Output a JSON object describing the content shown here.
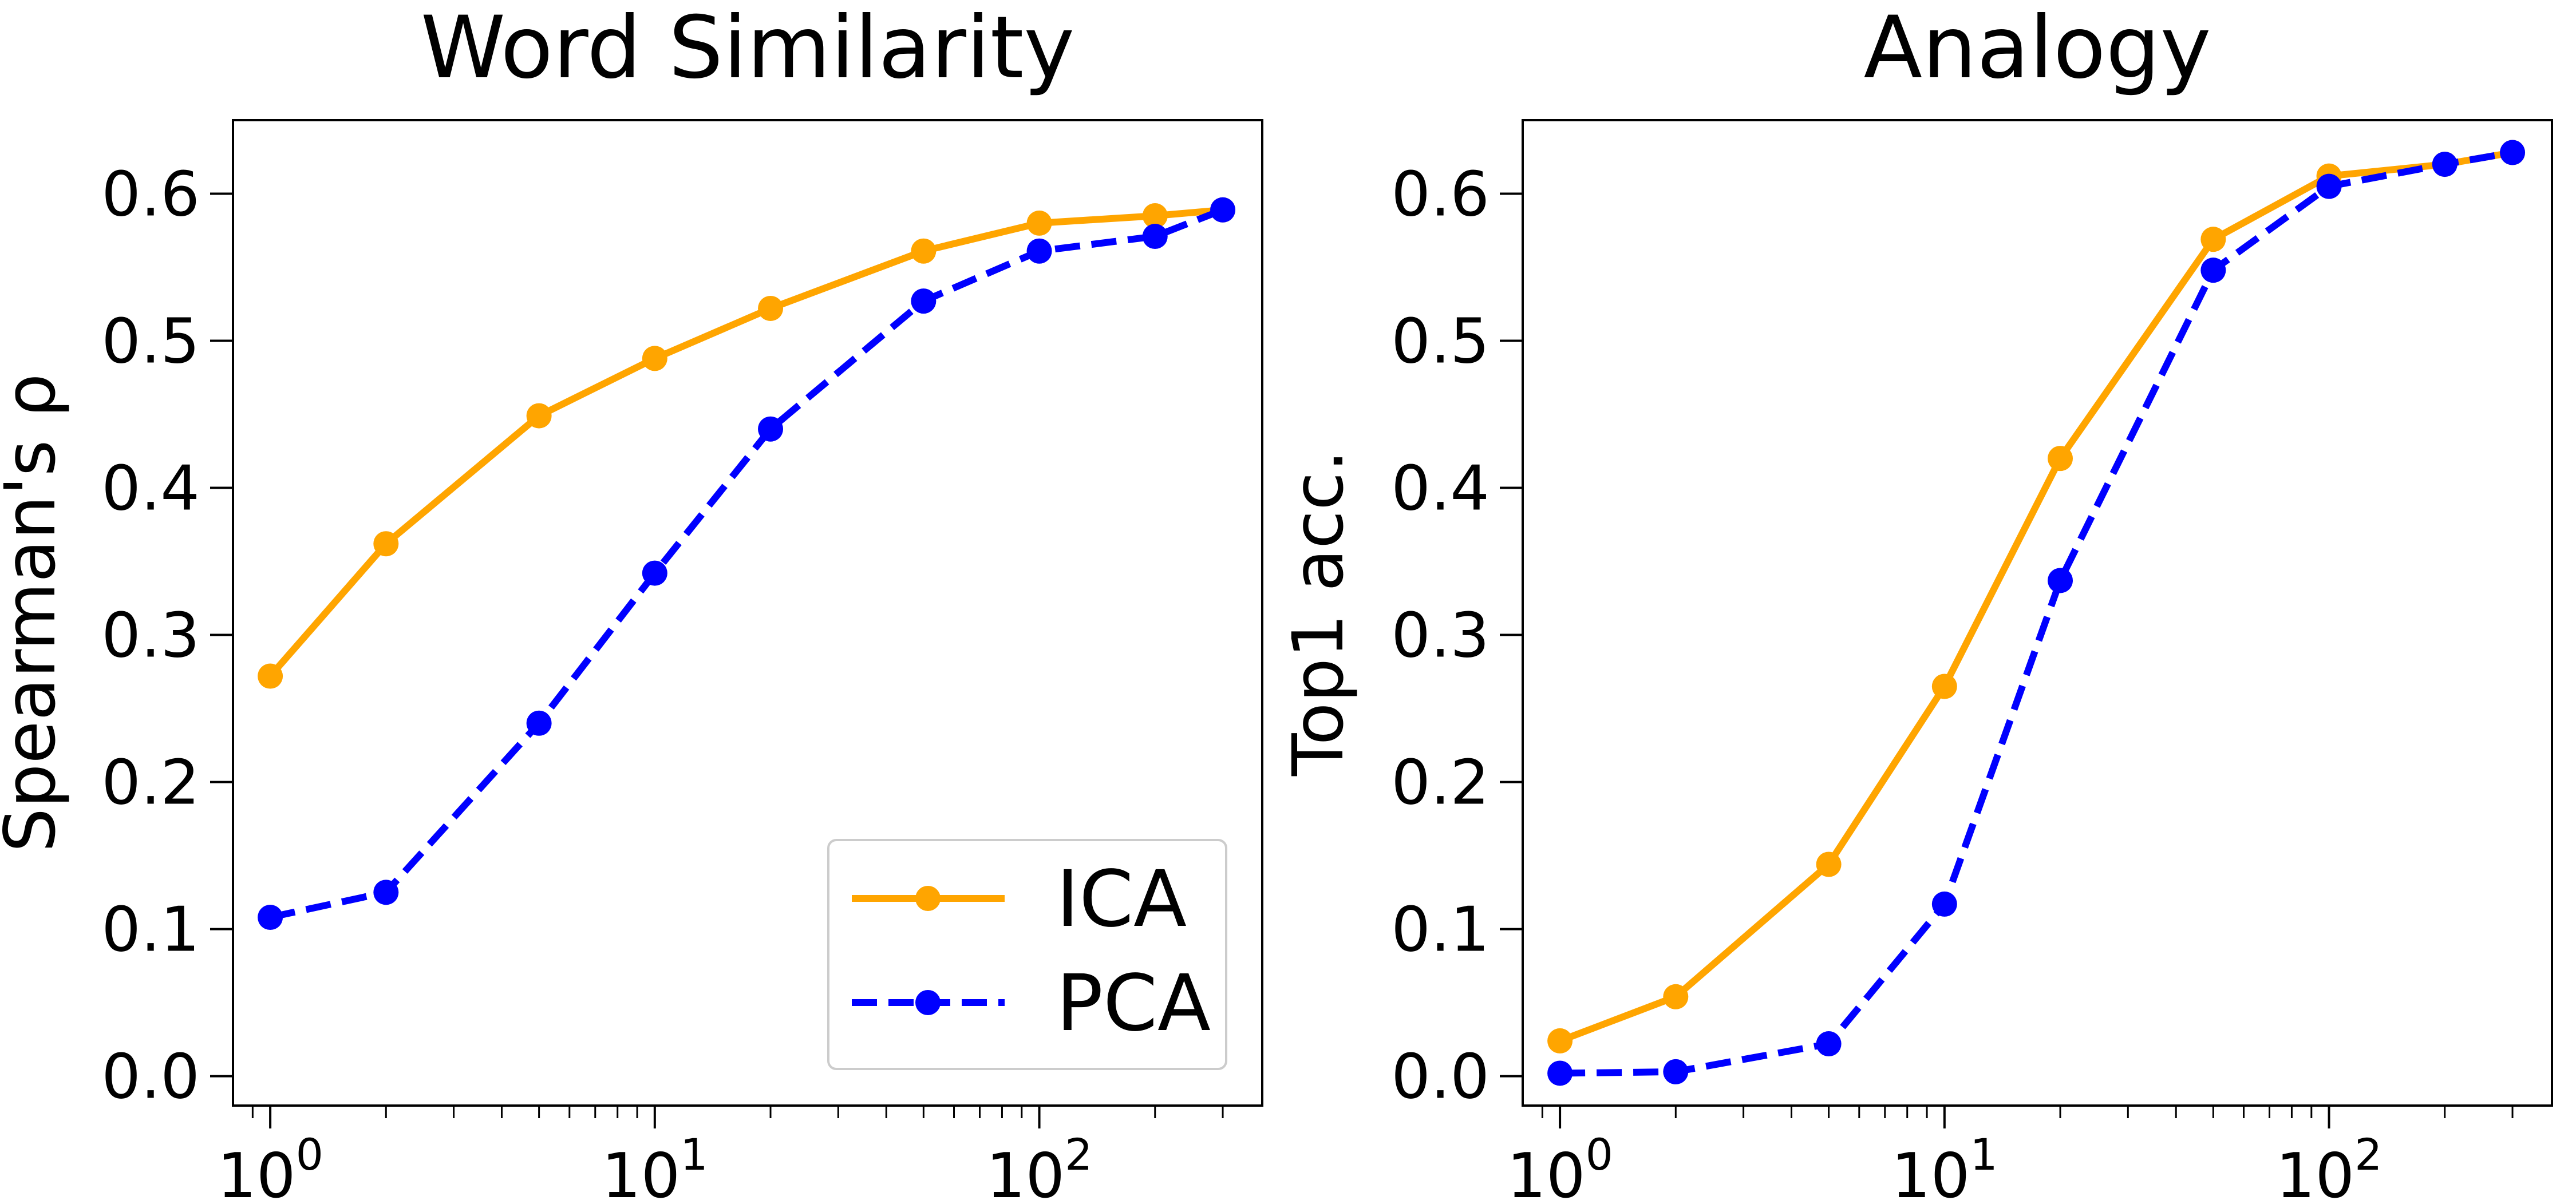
{
  "chart_data": [
    {
      "type": "line",
      "title": "Word Similarity",
      "xlabel": "",
      "ylabel": "Spearman's ρ",
      "xscale": "log",
      "xlim": [
        0.8,
        380
      ],
      "ylim": [
        -0.02,
        0.65
      ],
      "xticks": [
        {
          "value": 1,
          "base": "10",
          "exp": "0"
        },
        {
          "value": 10,
          "base": "10",
          "exp": "1"
        },
        {
          "value": 100,
          "base": "10",
          "exp": "2"
        }
      ],
      "yticks": [
        "0.0",
        "0.1",
        "0.2",
        "0.3",
        "0.4",
        "0.5",
        "0.6"
      ],
      "legend": {
        "position": "lower-right",
        "entries": [
          "ICA",
          "PCA"
        ]
      },
      "grid": false,
      "x": [
        1,
        2,
        5,
        10,
        20,
        50,
        100,
        200,
        300
      ],
      "series": [
        {
          "name": "ICA",
          "color": "#FFA500",
          "style": "solid",
          "values": [
            0.272,
            0.362,
            0.449,
            0.488,
            0.522,
            0.561,
            0.58,
            0.585,
            0.589
          ]
        },
        {
          "name": "PCA",
          "color": "#0000FF",
          "style": "dashed",
          "values": [
            0.108,
            0.125,
            0.24,
            0.342,
            0.44,
            0.527,
            0.561,
            0.571,
            0.589
          ]
        }
      ]
    },
    {
      "type": "line",
      "title": "Analogy",
      "xlabel": "",
      "ylabel": "Top1 acc.",
      "xscale": "log",
      "xlim": [
        0.8,
        380
      ],
      "ylim": [
        -0.02,
        0.65
      ],
      "xticks": [
        {
          "value": 1,
          "base": "10",
          "exp": "0"
        },
        {
          "value": 10,
          "base": "10",
          "exp": "1"
        },
        {
          "value": 100,
          "base": "10",
          "exp": "2"
        }
      ],
      "yticks": [
        "0.0",
        "0.1",
        "0.2",
        "0.3",
        "0.4",
        "0.5",
        "0.6"
      ],
      "grid": false,
      "x": [
        1,
        2,
        5,
        10,
        20,
        50,
        100,
        200,
        300
      ],
      "series": [
        {
          "name": "ICA",
          "color": "#FFA500",
          "style": "solid",
          "values": [
            0.024,
            0.054,
            0.144,
            0.265,
            0.42,
            0.569,
            0.612,
            0.62,
            0.628
          ]
        },
        {
          "name": "PCA",
          "color": "#0000FF",
          "style": "dashed",
          "values": [
            0.002,
            0.003,
            0.022,
            0.117,
            0.337,
            0.548,
            0.605,
            0.62,
            0.628
          ]
        }
      ]
    }
  ]
}
